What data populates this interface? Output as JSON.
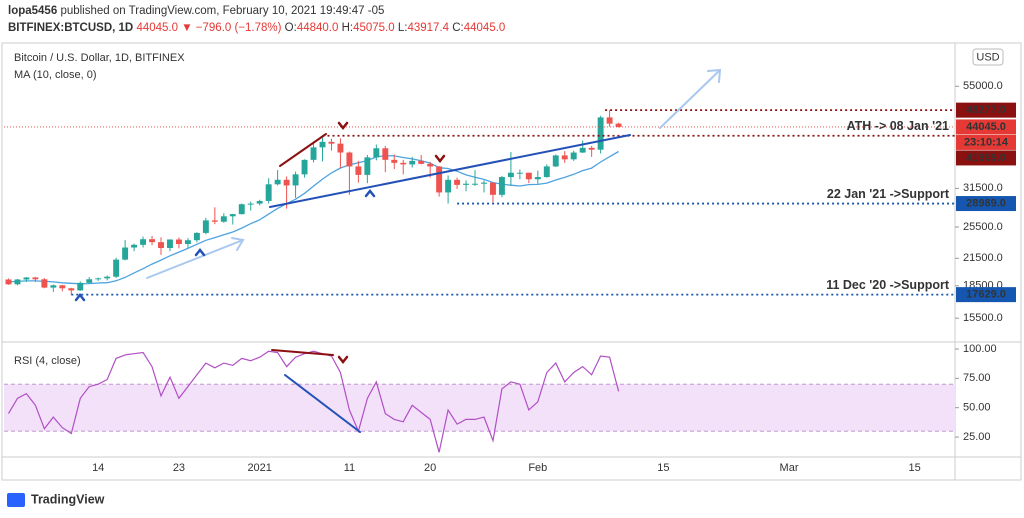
{
  "header": {
    "author": "lopa5456",
    "published": "published on TradingView.com, February 10, 2021 19:49:47 -05",
    "symbol": "BITFINEX:BTCUSD, 1D",
    "last": "44045.0",
    "change": "▼ −796.0 (−1.78%)",
    "ohlc": [
      {
        "key": "O:",
        "value": "44840.0"
      },
      {
        "key": "H:",
        "value": "45075.0"
      },
      {
        "key": "L:",
        "value": "43917.4"
      },
      {
        "key": "C:",
        "value": "44045.0"
      }
    ]
  },
  "chart_data": [
    {
      "type": "candlestick",
      "title": "Bitcoin / U.S. Dollar, 1D, BITFINEX",
      "currency": "USD",
      "categories": [
        null,
        null,
        null,
        null,
        null,
        null,
        null,
        null,
        null,
        null,
        "14",
        null,
        null,
        null,
        null,
        null,
        null,
        null,
        null,
        "23",
        null,
        null,
        null,
        null,
        null,
        null,
        null,
        null,
        "2021",
        null,
        null,
        null,
        null,
        null,
        null,
        null,
        null,
        null,
        "11",
        null,
        null,
        null,
        null,
        null,
        null,
        null,
        null,
        "20",
        null,
        null,
        null,
        null,
        null,
        null,
        null,
        null,
        null,
        null,
        null,
        "Feb",
        null,
        null,
        null,
        null,
        null,
        null,
        null,
        null,
        null,
        null,
        null,
        null,
        null,
        "15",
        null,
        null,
        null,
        null,
        null,
        null,
        null,
        null,
        null,
        null,
        null,
        null,
        null,
        "Mar",
        null,
        null,
        null,
        null,
        null,
        null,
        null,
        null,
        null,
        null,
        null,
        null,
        null,
        "15",
        null,
        null,
        null,
        null
      ],
      "open": [
        19150,
        18650,
        19150,
        19360,
        19170,
        18320,
        18550,
        18250,
        18040,
        18800,
        19170,
        19270,
        19440,
        21340,
        22800,
        23140,
        23860,
        23480,
        22740,
        23820,
        23240,
        23730,
        24690,
        26440,
        26250,
        27040,
        27360,
        28880,
        28980,
        29400,
        32200,
        33000,
        32000,
        34000,
        36800,
        39400,
        40600,
        40200,
        38300,
        35500,
        33900,
        37300,
        39200,
        36800,
        36200,
        35900,
        36600,
        36000,
        35500,
        30800,
        33000,
        32100,
        32300,
        32300,
        32500,
        30400,
        33500,
        34300,
        34300,
        33100,
        33500,
        35500,
        37700,
        36900,
        38300,
        39300,
        38900,
        46400,
        44840,
        null,
        null,
        null,
        null,
        null,
        null,
        null,
        null,
        null,
        null,
        null,
        null,
        null,
        null,
        null,
        null,
        null,
        null,
        null,
        null,
        null,
        null,
        null,
        null,
        null,
        null,
        null,
        null,
        null,
        null,
        null,
        null,
        null,
        null,
        null,
        null,
        null
      ],
      "high": [
        19250,
        19200,
        19400,
        19420,
        19300,
        18630,
        18600,
        18300,
        18950,
        19400,
        19350,
        19560,
        21560,
        23770,
        23300,
        24200,
        24300,
        24100,
        23850,
        24100,
        24000,
        24800,
        26800,
        28400,
        27500,
        27400,
        29000,
        29300,
        29600,
        33300,
        34800,
        33600,
        34500,
        36900,
        40300,
        41969,
        41300,
        41400,
        38500,
        36600,
        37800,
        40000,
        39700,
        37900,
        36800,
        37400,
        37800,
        36400,
        35600,
        33800,
        33400,
        32900,
        34800,
        32900,
        32500,
        33700,
        38400,
        34900,
        34300,
        34700,
        35900,
        37900,
        38600,
        38700,
        40900,
        39700,
        46800,
        48277,
        45075,
        null,
        null,
        null,
        null,
        null,
        null,
        null,
        null,
        null,
        null,
        null,
        null,
        null,
        null,
        null,
        null,
        null,
        null,
        null,
        null,
        null,
        null,
        null,
        null,
        null,
        null,
        null,
        null,
        null,
        null,
        null,
        null,
        null,
        null,
        null,
        null,
        null
      ],
      "low": [
        18600,
        18550,
        18900,
        18900,
        18250,
        17900,
        17950,
        17629,
        18000,
        18750,
        19000,
        19050,
        19300,
        21250,
        22350,
        22800,
        23100,
        21900,
        22350,
        22700,
        22750,
        23450,
        24500,
        25900,
        26100,
        25850,
        27300,
        27900,
        28700,
        29000,
        32000,
        28200,
        29900,
        33400,
        36300,
        36500,
        38700,
        35200,
        30400,
        32500,
        32400,
        36700,
        34400,
        35000,
        34000,
        35300,
        35900,
        33400,
        30100,
        28989,
        31400,
        31000,
        31900,
        30800,
        29200,
        30000,
        32000,
        33100,
        32400,
        32300,
        33400,
        35400,
        36200,
        36600,
        38200,
        37400,
        38100,
        44100,
        43917.4,
        null,
        null,
        null,
        null,
        null,
        null,
        null,
        null,
        null,
        null,
        null,
        null,
        null,
        null,
        null,
        null,
        null,
        null,
        null,
        null,
        null,
        null,
        null,
        null,
        null,
        null,
        null,
        null,
        null,
        null,
        null,
        null,
        null,
        null,
        null,
        null,
        null
      ],
      "close": [
        18650,
        19150,
        19360,
        19170,
        18320,
        18550,
        18250,
        18040,
        18800,
        19170,
        19270,
        19440,
        21340,
        22800,
        23140,
        23860,
        23480,
        22740,
        23820,
        23240,
        23730,
        24690,
        26440,
        26250,
        27040,
        27360,
        28880,
        28980,
        29400,
        32200,
        33000,
        32000,
        34000,
        36800,
        39400,
        40600,
        40200,
        38300,
        35500,
        33900,
        37300,
        39200,
        36800,
        36200,
        35900,
        36600,
        36000,
        35500,
        30800,
        33000,
        32100,
        32300,
        32300,
        32500,
        30400,
        33500,
        34300,
        34300,
        33100,
        33500,
        35500,
        37700,
        36900,
        38300,
        39300,
        38900,
        46400,
        44841,
        44045,
        null,
        null,
        null,
        null,
        null,
        null,
        null,
        null,
        null,
        null,
        null,
        null,
        null,
        null,
        null,
        null,
        null,
        null,
        null,
        null,
        null,
        null,
        null,
        null,
        null,
        null,
        null,
        null,
        null,
        null,
        null,
        null,
        null,
        null,
        null,
        null,
        null
      ],
      "up_color": "#26a69a",
      "down_color": "#ef5350",
      "series": [
        {
          "name": "MA (10, close, 0)",
          "color": "#4da3e0",
          "values": [
            18900,
            18950,
            19000,
            19000,
            18950,
            18900,
            18800,
            18750,
            18700,
            18720,
            18780,
            18810,
            19010,
            19370,
            19850,
            20310,
            20830,
            21290,
            21790,
            22240,
            22690,
            23210,
            23720,
            24070,
            24460,
            24810,
            25350,
            25970,
            26530,
            27370,
            28230,
            28960,
            29690,
            30660,
            31890,
            33130,
            34260,
            35190,
            35800,
            36210,
            36660,
            37380,
            37660,
            37600,
            37270,
            36990,
            36630,
            36150,
            35250,
            35110,
            34590,
            33900,
            33450,
            33080,
            32500,
            32230,
            32040,
            31910,
            32140,
            32180,
            32420,
            32970,
            33430,
            34010,
            34710,
            35170,
            36380,
            37430,
            38520,
            null,
            null,
            null,
            null,
            null,
            null,
            null,
            null,
            null,
            null,
            null,
            null,
            null,
            null,
            null,
            null,
            null,
            null,
            null,
            null,
            null,
            null,
            null,
            null,
            null,
            null,
            null,
            null,
            null,
            null,
            null,
            null,
            null,
            null,
            null,
            null,
            null
          ]
        }
      ],
      "log_scale": true,
      "ylim": [
        13760,
        68900
      ],
      "yticks": [
        {
          "value": 15500,
          "label": "15500.0"
        },
        {
          "value": 18500,
          "label": "18500.0"
        },
        {
          "value": 21500,
          "label": "21500.0"
        },
        {
          "value": 25500,
          "label": "25500.0"
        },
        {
          "value": 31500,
          "label": "31500.0"
        },
        {
          "value": 55000,
          "label": "55000.0"
        }
      ],
      "price_levels": [
        {
          "value": 48277,
          "label": "48277.0",
          "color": "#8b1010"
        },
        {
          "value": 44045,
          "label": "44045.0",
          "color": "#e53935",
          "countdown": "23:10:14"
        },
        {
          "value": 41969,
          "label": "41969.0",
          "color": "#8b1010",
          "note": "ATH -> 08 Jan '21",
          "note_color": "#d32f2f"
        },
        {
          "value": 28989,
          "label": "28989.0",
          "color": "#1557b0",
          "note": "22 Jan '21 ->Support",
          "note_color": "#2a7fd4"
        },
        {
          "value": 17629,
          "label": "17629.0",
          "color": "#1557b0",
          "note": "11 Dec '20 ->Support",
          "note_color": "#2a7fd4"
        }
      ]
    },
    {
      "type": "line",
      "series": [
        {
          "name": "RSI (4, close)",
          "color": "#b14fc5",
          "values": [
            45,
            58,
            62,
            52,
            32,
            42,
            33,
            28,
            58,
            68,
            70,
            74,
            92,
            95,
            96,
            97,
            85,
            60,
            76,
            58,
            68,
            78,
            88,
            84,
            88,
            86,
            92,
            90,
            93,
            98,
            97,
            85,
            93,
            96,
            98,
            96,
            94,
            80,
            48,
            30,
            58,
            72,
            45,
            40,
            38,
            52,
            46,
            40,
            12,
            48,
            36,
            40,
            40,
            42,
            22,
            66,
            72,
            70,
            48,
            55,
            80,
            88,
            72,
            80,
            85,
            78,
            94,
            93,
            64,
            null,
            null,
            null,
            null,
            null,
            null,
            null,
            null,
            null,
            null,
            null,
            null,
            null,
            null,
            null,
            null,
            null,
            null,
            null,
            null,
            null,
            null,
            null,
            null,
            null,
            null,
            null,
            null,
            null,
            null,
            null,
            null,
            null,
            null,
            null,
            null,
            null
          ]
        }
      ],
      "band": [
        30,
        70
      ],
      "band_color": "#f3e1fa",
      "ylim": [
        9.7,
        103.4
      ],
      "yticks": [
        {
          "value": 25,
          "label": "25.00"
        },
        {
          "value": 50,
          "label": "50.00"
        },
        {
          "value": 75,
          "label": "75.00"
        },
        {
          "value": 100,
          "label": "100.00"
        }
      ]
    }
  ],
  "footer": {
    "brand": "TradingView"
  }
}
